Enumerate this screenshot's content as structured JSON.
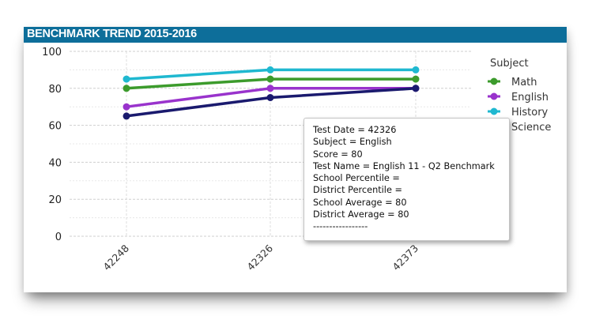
{
  "colors": {
    "header_bg": "#0d6e9a",
    "header_text": "#ffffff",
    "math": "#3c9b2c",
    "english": "#9933cc",
    "history": "#1fb8d0",
    "science": "#1a1a6e"
  },
  "chart_data": {
    "type": "line",
    "title": "BENCHMARK TREND 2015-2016",
    "xlabel": "",
    "ylabel": "",
    "categories": [
      "42248",
      "42326",
      "42373"
    ],
    "ylim": [
      0,
      100
    ],
    "yticks": [
      0,
      20,
      40,
      60,
      80,
      100
    ],
    "grid": true,
    "legend_title": "Subject",
    "legend_position": "right",
    "series": [
      {
        "name": "Math",
        "color": "#3c9b2c",
        "values": [
          80,
          85,
          85
        ]
      },
      {
        "name": "English",
        "color": "#9933cc",
        "values": [
          70,
          80,
          80
        ]
      },
      {
        "name": "History",
        "color": "#1fb8d0",
        "values": [
          85,
          90,
          90
        ]
      },
      {
        "name": "Science",
        "color": "#1a1a6e",
        "values": [
          65,
          75,
          80
        ]
      }
    ]
  },
  "tooltip": {
    "lines": [
      "Test Date = 42326",
      "Subject = English",
      "Score = 80",
      "Test Name = English 11 - Q2 Benchmark",
      "School Percentile =",
      "District Percentile =",
      "School Average = 80",
      "District Average = 80",
      "-----------------"
    ]
  }
}
